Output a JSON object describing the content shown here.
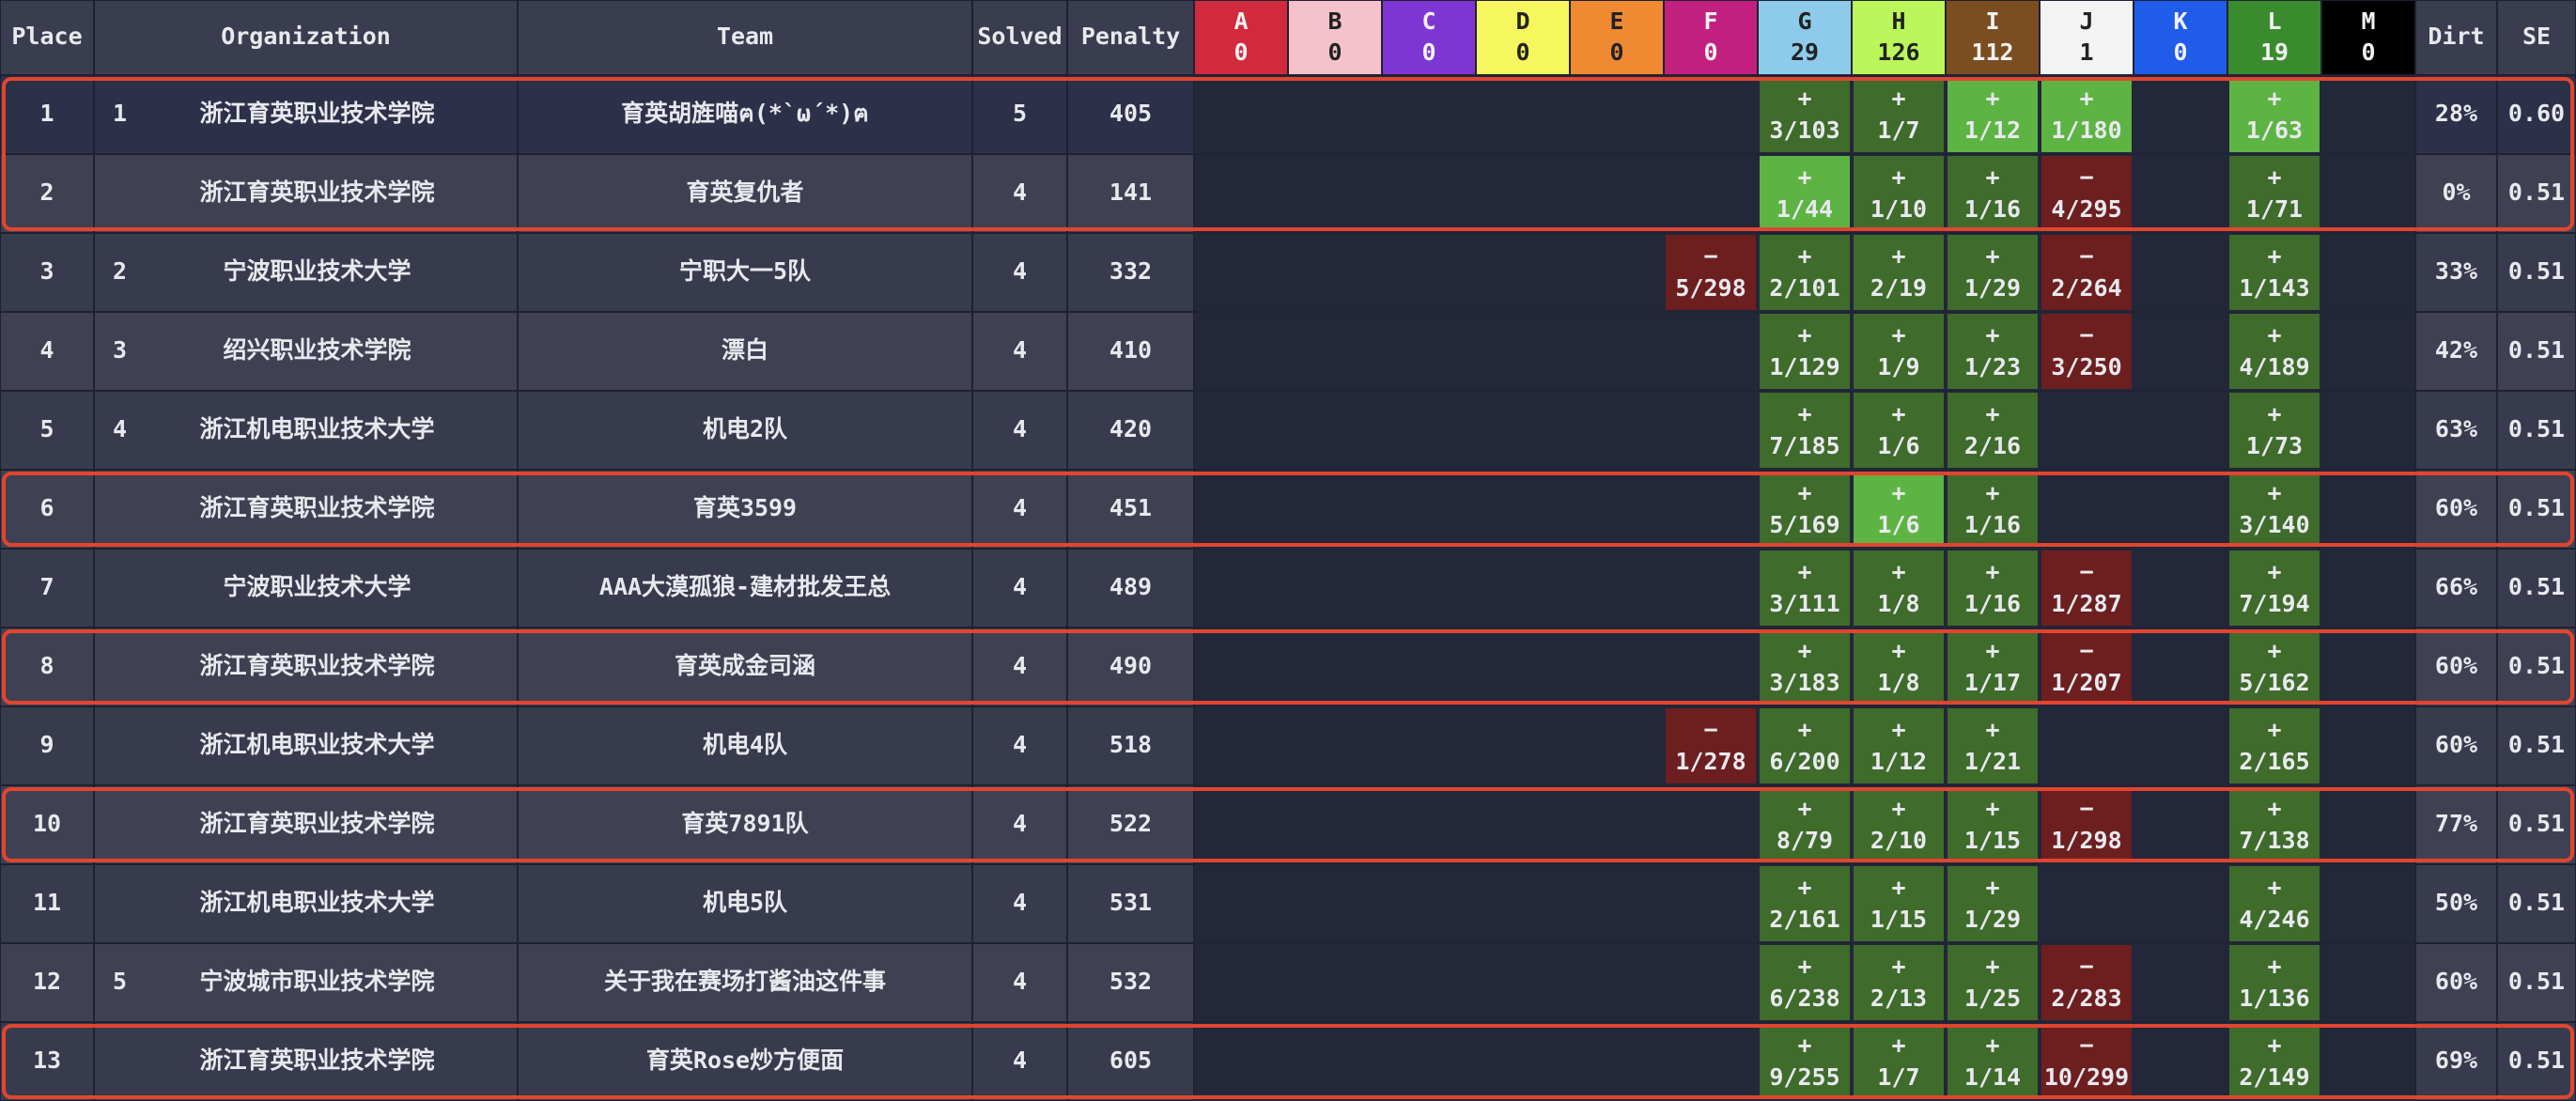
{
  "scoreboard": {
    "columns": {
      "place": "Place",
      "organization": "Organization",
      "team": "Team",
      "solved": "Solved",
      "penalty": "Penalty",
      "dirt": "Dirt",
      "se": "SE"
    },
    "problems": [
      {
        "letter": "A",
        "count": 0,
        "color": "#d12a3c"
      },
      {
        "letter": "B",
        "count": 0,
        "color": "#f5c2cc"
      },
      {
        "letter": "C",
        "count": 0,
        "color": "#7e36d2"
      },
      {
        "letter": "D",
        "count": 0,
        "color": "#f6f65e"
      },
      {
        "letter": "E",
        "count": 0,
        "color": "#ef8a33"
      },
      {
        "letter": "F",
        "count": 0,
        "color": "#c2207f"
      },
      {
        "letter": "G",
        "count": 29,
        "color": "#8ecbea"
      },
      {
        "letter": "H",
        "count": 126,
        "color": "#bbf65a"
      },
      {
        "letter": "I",
        "count": 112,
        "color": "#7b4e22"
      },
      {
        "letter": "J",
        "count": 1,
        "color": "#f3f3f3"
      },
      {
        "letter": "K",
        "count": 0,
        "color": "#1f5ce9"
      },
      {
        "letter": "L",
        "count": 19,
        "color": "#3a8b2e"
      },
      {
        "letter": "M",
        "count": 0,
        "color": "#000000"
      }
    ],
    "rows": [
      {
        "place": 1,
        "org_rank": 1,
        "organization": "浙江育英职业技术学院",
        "team": "育英胡旌喵ฅ(*`ω´*)ฅ",
        "solved": 5,
        "penalty": 405,
        "highlight": true,
        "cells": [
          null,
          null,
          null,
          null,
          null,
          null,
          {
            "sign": "+",
            "result": "3/103",
            "state": "solved"
          },
          {
            "sign": "+",
            "result": "1/7",
            "state": "solved"
          },
          {
            "sign": "+",
            "result": "1/12",
            "state": "first"
          },
          {
            "sign": "+",
            "result": "1/180",
            "state": "first"
          },
          null,
          {
            "sign": "+",
            "result": "1/63",
            "state": "first"
          },
          null
        ],
        "dirt": "28%",
        "se": "0.60"
      },
      {
        "place": 2,
        "organization": "浙江育英职业技术学院",
        "team": "育英复仇者",
        "solved": 4,
        "penalty": 141,
        "highlight": true,
        "cells": [
          null,
          null,
          null,
          null,
          null,
          null,
          {
            "sign": "+",
            "result": "1/44",
            "state": "first"
          },
          {
            "sign": "+",
            "result": "1/10",
            "state": "solved"
          },
          {
            "sign": "+",
            "result": "1/16",
            "state": "solved"
          },
          {
            "sign": "−",
            "result": "4/295",
            "state": "failed"
          },
          null,
          {
            "sign": "+",
            "result": "1/71",
            "state": "solved"
          },
          null
        ],
        "dirt": "0%",
        "se": "0.51"
      },
      {
        "place": 3,
        "org_rank": 2,
        "organization": "宁波职业技术大学",
        "team": "宁职大一5队",
        "solved": 4,
        "penalty": 332,
        "cells": [
          null,
          null,
          null,
          null,
          null,
          {
            "sign": "−",
            "result": "5/298",
            "state": "failed"
          },
          {
            "sign": "+",
            "result": "2/101",
            "state": "solved"
          },
          {
            "sign": "+",
            "result": "2/19",
            "state": "solved"
          },
          {
            "sign": "+",
            "result": "1/29",
            "state": "solved"
          },
          {
            "sign": "−",
            "result": "2/264",
            "state": "failed"
          },
          null,
          {
            "sign": "+",
            "result": "1/143",
            "state": "solved"
          },
          null
        ],
        "dirt": "33%",
        "se": "0.51"
      },
      {
        "place": 4,
        "org_rank": 3,
        "organization": "绍兴职业技术学院",
        "team": "漂白",
        "solved": 4,
        "penalty": 410,
        "cells": [
          null,
          null,
          null,
          null,
          null,
          null,
          {
            "sign": "+",
            "result": "1/129",
            "state": "solved"
          },
          {
            "sign": "+",
            "result": "1/9",
            "state": "solved"
          },
          {
            "sign": "+",
            "result": "1/23",
            "state": "solved"
          },
          {
            "sign": "−",
            "result": "3/250",
            "state": "failed"
          },
          null,
          {
            "sign": "+",
            "result": "4/189",
            "state": "solved"
          },
          null
        ],
        "dirt": "42%",
        "se": "0.51"
      },
      {
        "place": 5,
        "org_rank": 4,
        "organization": "浙江机电职业技术大学",
        "team": "机电2队",
        "solved": 4,
        "penalty": 420,
        "cells": [
          null,
          null,
          null,
          null,
          null,
          null,
          {
            "sign": "+",
            "result": "7/185",
            "state": "solved"
          },
          {
            "sign": "+",
            "result": "1/6",
            "state": "solved"
          },
          {
            "sign": "+",
            "result": "2/16",
            "state": "solved"
          },
          null,
          null,
          {
            "sign": "+",
            "result": "1/73",
            "state": "solved"
          },
          null
        ],
        "dirt": "63%",
        "se": "0.51"
      },
      {
        "place": 6,
        "organization": "浙江育英职业技术学院",
        "team": "育英3599",
        "solved": 4,
        "penalty": 451,
        "highlight": true,
        "cells": [
          null,
          null,
          null,
          null,
          null,
          null,
          {
            "sign": "+",
            "result": "5/169",
            "state": "solved"
          },
          {
            "sign": "+",
            "result": "1/6",
            "state": "first"
          },
          {
            "sign": "+",
            "result": "1/16",
            "state": "solved"
          },
          null,
          null,
          {
            "sign": "+",
            "result": "3/140",
            "state": "solved"
          },
          null
        ],
        "dirt": "60%",
        "se": "0.51"
      },
      {
        "place": 7,
        "organization": "宁波职业技术大学",
        "team": "AAA大漠孤狼-建材批发王总",
        "solved": 4,
        "penalty": 489,
        "cells": [
          null,
          null,
          null,
          null,
          null,
          null,
          {
            "sign": "+",
            "result": "3/111",
            "state": "solved"
          },
          {
            "sign": "+",
            "result": "1/8",
            "state": "solved"
          },
          {
            "sign": "+",
            "result": "1/16",
            "state": "solved"
          },
          {
            "sign": "−",
            "result": "1/287",
            "state": "failed"
          },
          null,
          {
            "sign": "+",
            "result": "7/194",
            "state": "solved"
          },
          null
        ],
        "dirt": "66%",
        "se": "0.51"
      },
      {
        "place": 8,
        "organization": "浙江育英职业技术学院",
        "team": "育英成金司涵",
        "solved": 4,
        "penalty": 490,
        "highlight": true,
        "cells": [
          null,
          null,
          null,
          null,
          null,
          null,
          {
            "sign": "+",
            "result": "3/183",
            "state": "solved"
          },
          {
            "sign": "+",
            "result": "1/8",
            "state": "solved"
          },
          {
            "sign": "+",
            "result": "1/17",
            "state": "solved"
          },
          {
            "sign": "−",
            "result": "1/207",
            "state": "failed"
          },
          null,
          {
            "sign": "+",
            "result": "5/162",
            "state": "solved"
          },
          null
        ],
        "dirt": "60%",
        "se": "0.51"
      },
      {
        "place": 9,
        "organization": "浙江机电职业技术大学",
        "team": "机电4队",
        "solved": 4,
        "penalty": 518,
        "cells": [
          null,
          null,
          null,
          null,
          null,
          {
            "sign": "−",
            "result": "1/278",
            "state": "failed"
          },
          {
            "sign": "+",
            "result": "6/200",
            "state": "solved"
          },
          {
            "sign": "+",
            "result": "1/12",
            "state": "solved"
          },
          {
            "sign": "+",
            "result": "1/21",
            "state": "solved"
          },
          null,
          null,
          {
            "sign": "+",
            "result": "2/165",
            "state": "solved"
          },
          null
        ],
        "dirt": "60%",
        "se": "0.51"
      },
      {
        "place": 10,
        "organization": "浙江育英职业技术学院",
        "team": "育英7891队",
        "solved": 4,
        "penalty": 522,
        "highlight": true,
        "cells": [
          null,
          null,
          null,
          null,
          null,
          null,
          {
            "sign": "+",
            "result": "8/79",
            "state": "solved"
          },
          {
            "sign": "+",
            "result": "2/10",
            "state": "solved"
          },
          {
            "sign": "+",
            "result": "1/15",
            "state": "solved"
          },
          {
            "sign": "−",
            "result": "1/298",
            "state": "failed"
          },
          null,
          {
            "sign": "+",
            "result": "7/138",
            "state": "solved"
          },
          null
        ],
        "dirt": "77%",
        "se": "0.51"
      },
      {
        "place": 11,
        "organization": "浙江机电职业技术大学",
        "team": "机电5队",
        "solved": 4,
        "penalty": 531,
        "cells": [
          null,
          null,
          null,
          null,
          null,
          null,
          {
            "sign": "+",
            "result": "2/161",
            "state": "solved"
          },
          {
            "sign": "+",
            "result": "1/15",
            "state": "solved"
          },
          {
            "sign": "+",
            "result": "1/29",
            "state": "solved"
          },
          null,
          null,
          {
            "sign": "+",
            "result": "4/246",
            "state": "solved"
          },
          null
        ],
        "dirt": "50%",
        "se": "0.51"
      },
      {
        "place": 12,
        "org_rank": 5,
        "organization": "宁波城市职业技术学院",
        "team": "关于我在赛场打酱油这件事",
        "solved": 4,
        "penalty": 532,
        "cells": [
          null,
          null,
          null,
          null,
          null,
          null,
          {
            "sign": "+",
            "result": "6/238",
            "state": "solved"
          },
          {
            "sign": "+",
            "result": "2/13",
            "state": "solved"
          },
          {
            "sign": "+",
            "result": "1/25",
            "state": "solved"
          },
          {
            "sign": "−",
            "result": "2/283",
            "state": "failed"
          },
          null,
          {
            "sign": "+",
            "result": "1/136",
            "state": "solved"
          },
          null
        ],
        "dirt": "60%",
        "se": "0.51"
      },
      {
        "place": 13,
        "organization": "浙江育英职业技术学院",
        "team": "育英Rose炒方便面",
        "solved": 4,
        "penalty": 605,
        "highlight": true,
        "cells": [
          null,
          null,
          null,
          null,
          null,
          null,
          {
            "sign": "+",
            "result": "9/255",
            "state": "solved"
          },
          {
            "sign": "+",
            "result": "1/7",
            "state": "solved"
          },
          {
            "sign": "+",
            "result": "1/14",
            "state": "solved"
          },
          {
            "sign": "−",
            "result": "10/299",
            "state": "failed"
          },
          null,
          {
            "sign": "+",
            "result": "2/149",
            "state": "solved"
          },
          null
        ],
        "dirt": "69%",
        "se": "0.51"
      }
    ]
  }
}
